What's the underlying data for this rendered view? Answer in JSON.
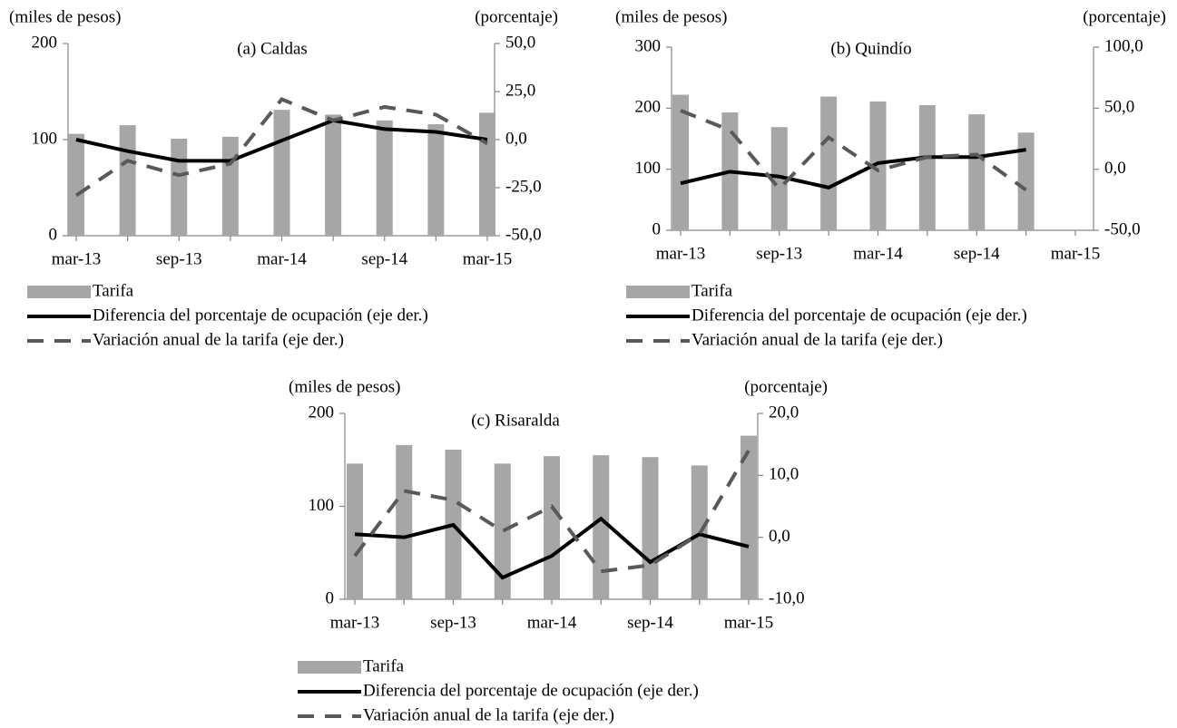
{
  "chart_data": [
    {
      "type": "combo",
      "title": "(a) Caldas",
      "ylabel": "(miles  de pesos)",
      "y2label": "(porcentaje)",
      "categories": [
        "mar-13",
        null,
        "sep-13",
        null,
        "mar-14",
        null,
        "sep-14",
        null,
        "mar-15"
      ],
      "ylim": [
        0,
        200
      ],
      "yticks": [
        0,
        100,
        200
      ],
      "y2lim": [
        -50,
        50
      ],
      "y2ticks": [
        {
          "value": -50,
          "label": "-50,0"
        },
        {
          "value": -25,
          "label": "-25,0"
        },
        {
          "value": 0,
          "label": "0,0"
        },
        {
          "value": 25,
          "label": "25,0"
        },
        {
          "value": 50,
          "label": "50,0"
        }
      ],
      "series": [
        {
          "name": "Tarifa",
          "kind": "bar",
          "color": "#a6a6a6",
          "values": [
            106,
            115,
            101,
            103,
            131,
            126,
            120,
            116,
            128
          ]
        },
        {
          "name": "Diferencia del porcentaje de ocupación (eje der.)",
          "kind": "line",
          "dashed": false,
          "axis": "y2",
          "color": "#000000",
          "values": [
            0,
            -6,
            -11,
            -11,
            -0.5,
            10,
            5.5,
            4,
            0
          ]
        },
        {
          "name": "Variación anual de la tarifa (eje der.)",
          "kind": "line",
          "dashed": true,
          "axis": "y2",
          "color": "#595959",
          "values": [
            -29,
            -11,
            -18.5,
            -12.5,
            21,
            10,
            17,
            13,
            -2
          ]
        }
      ]
    },
    {
      "type": "combo",
      "title": "(b) Quindío",
      "ylabel": "(miles  de pesos)",
      "y2label": "(porcentaje)",
      "categories": [
        "mar-13",
        null,
        "sep-13",
        null,
        "mar-14",
        null,
        "sep-14",
        null,
        "mar-15"
      ],
      "ylim": [
        0,
        300
      ],
      "yticks": [
        0,
        100,
        200,
        300
      ],
      "y2lim": [
        -50,
        100
      ],
      "y2ticks": [
        {
          "value": -50,
          "label": "-50,0"
        },
        {
          "value": 0,
          "label": "0,0"
        },
        {
          "value": 50,
          "label": "50,0"
        },
        {
          "value": 100,
          "label": "100,0"
        }
      ],
      "series": [
        {
          "name": "Tarifa",
          "kind": "bar",
          "color": "#a6a6a6",
          "values": [
            222,
            193,
            169,
            219,
            211,
            205,
            190,
            160,
            null
          ]
        },
        {
          "name": "Diferencia del porcentaje de ocupación (eje der.)",
          "kind": "line",
          "dashed": false,
          "axis": "y2",
          "color": "#000000",
          "values": [
            -11.5,
            -2,
            -6,
            -15,
            5,
            10,
            10,
            16,
            null
          ]
        },
        {
          "name": "Variación anual de la tarifa (eje der.)",
          "kind": "line",
          "dashed": true,
          "axis": "y2",
          "color": "#595959",
          "values": [
            48,
            32,
            -16,
            26,
            -1,
            10,
            12,
            -17,
            null
          ]
        }
      ]
    },
    {
      "type": "combo",
      "title": "(c) Risaralda",
      "ylabel": "(miles  de pesos)",
      "y2label": "(porcentaje)",
      "categories": [
        "mar-13",
        null,
        "sep-13",
        null,
        "mar-14",
        null,
        "sep-14",
        null,
        "mar-15"
      ],
      "ylim": [
        0,
        200
      ],
      "yticks": [
        0,
        100,
        200
      ],
      "y2lim": [
        -10,
        20
      ],
      "y2ticks": [
        {
          "value": -10,
          "label": "-10,0"
        },
        {
          "value": 0,
          "label": "0,0"
        },
        {
          "value": 10,
          "label": "10,0"
        },
        {
          "value": 20,
          "label": "20,0"
        }
      ],
      "series": [
        {
          "name": "Tarifa",
          "kind": "bar",
          "color": "#a6a6a6",
          "values": [
            146,
            166,
            161,
            146,
            154,
            155,
            153,
            144,
            176
          ]
        },
        {
          "name": "Diferencia del porcentaje de ocupación (eje der.)",
          "kind": "line",
          "dashed": false,
          "axis": "y2",
          "color": "#000000",
          "values": [
            0.5,
            0,
            2,
            -6.5,
            -3,
            3,
            -4,
            0.5,
            -1.5
          ]
        },
        {
          "name": "Variación anual de la tarifa (eje der.)",
          "kind": "line",
          "dashed": true,
          "axis": "y2",
          "color": "#595959",
          "values": [
            -3,
            7.5,
            6,
            1,
            5,
            -5.5,
            -4.5,
            0.5,
            14
          ]
        }
      ]
    }
  ]
}
